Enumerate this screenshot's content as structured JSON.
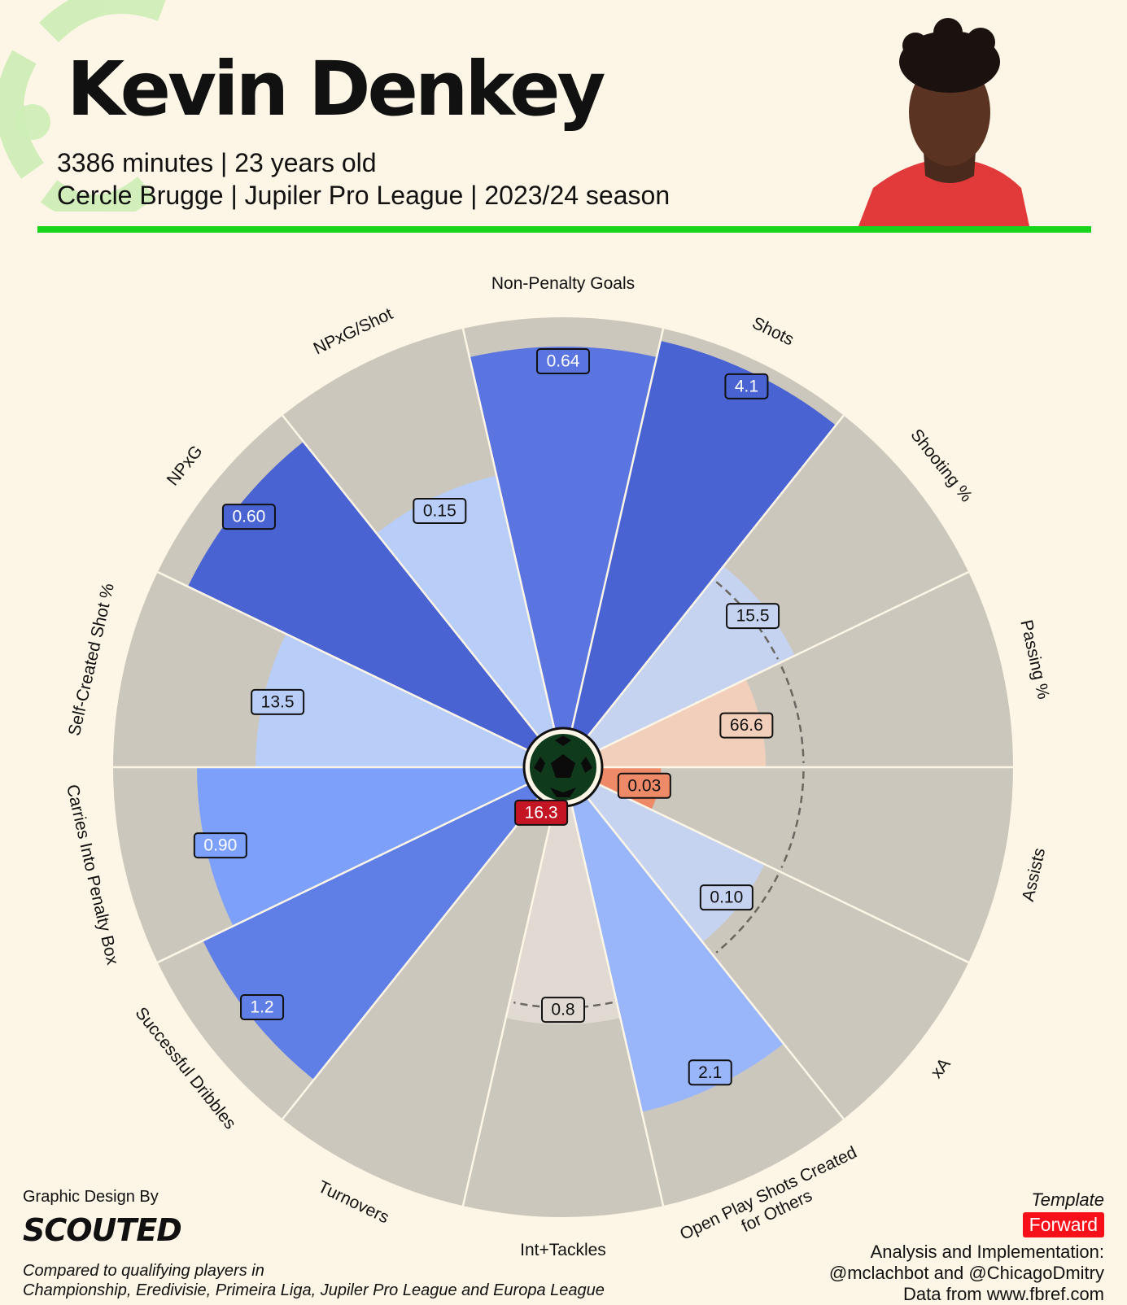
{
  "player": {
    "name": "Kevin Denkey",
    "minutes_age": "3386 minutes | 23 years old",
    "club_league_season": "Cercle Brugge | Jupiler Pro League | 2023/24 season"
  },
  "colors": {
    "background": "#fdf6e6",
    "rule": "#17d41c",
    "slice_background": "#ccc7bd",
    "template_badge": "#f7101a"
  },
  "footer": {
    "design_by": "Graphic Design By",
    "brand": "SCOUTED",
    "compared_line1": "Compared to qualifying players in",
    "compared_line2": "Championship, Eredivisie, Primeira Liga, Jupiler Pro League and Europa League",
    "template_label": "Template",
    "template_value": "Forward",
    "analysis_line1": "Analysis and Implementation:",
    "analysis_line2": "@mclachbot and @ChicagoDmitry",
    "analysis_line3": "Data from www.fbref.com"
  },
  "chart_data": {
    "type": "pizza",
    "title": "Kevin Denkey",
    "value_range": [
      0,
      100
    ],
    "slices": [
      {
        "label": "Non-Penalty Goals",
        "value": "0.64",
        "percentile": 93,
        "color": "#5a74e0"
      },
      {
        "label": "Shots",
        "value": "4.1",
        "percentile": 97,
        "color": "#4a63d3"
      },
      {
        "label": "Shooting %",
        "value": "15.5",
        "percentile": 54,
        "color": "#c5d3f0"
      },
      {
        "label": "Passing %",
        "value": "66.6",
        "percentile": 41,
        "color": "#f2cfbb"
      },
      {
        "label": "Assists",
        "value": "0.03",
        "percentile": 16,
        "color": "#ee8a68"
      },
      {
        "label": "xA",
        "value": "0.10",
        "percentile": 46,
        "color": "#c5d3f0"
      },
      {
        "label": "Open Play Shots Created\nfor Others",
        "value": "2.1",
        "percentile": 77,
        "color": "#9ab6fb"
      },
      {
        "label": "Int+Tackles",
        "value": "0.8",
        "percentile": 54,
        "color": "#e1dad2"
      },
      {
        "label": "Turnovers",
        "value": "16.3",
        "percentile": 2,
        "color": "#c41524"
      },
      {
        "label": "Successful Dribbles",
        "value": "1.2",
        "percentile": 88,
        "color": "#5f7fe7"
      },
      {
        "label": "Carries Into Penalty Box",
        "value": "0.90",
        "percentile": 80,
        "color": "#7da0fa"
      },
      {
        "label": "Self-Created Shot %",
        "value": "13.5",
        "percentile": 66,
        "color": "#b8cdf8"
      },
      {
        "label": "NPxG",
        "value": "0.60",
        "percentile": 92,
        "color": "#4a63d3"
      },
      {
        "label": "NPxG/Shot",
        "value": "0.15",
        "percentile": 64,
        "color": "#b8cdf8"
      }
    ],
    "reference_percentile": 50
  }
}
